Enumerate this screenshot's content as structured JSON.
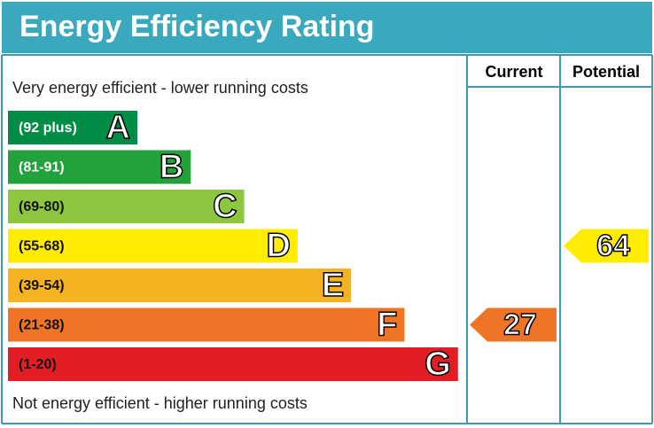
{
  "chart_data": {
    "type": "epc",
    "title": "Energy Efficiency Rating",
    "top_label": "Very energy efficient - lower running costs",
    "bottom_label": "Not energy efficient - higher running costs",
    "columns": [
      "Current",
      "Potential"
    ],
    "bands": [
      {
        "letter": "A",
        "range": "(92 plus)",
        "color": "#008c46",
        "text_color": "#ffffff"
      },
      {
        "letter": "B",
        "range": "(81-91)",
        "color": "#22a23a",
        "text_color": "#ffffff"
      },
      {
        "letter": "C",
        "range": "(69-80)",
        "color": "#8dc63f",
        "text_color": "#111111"
      },
      {
        "letter": "D",
        "range": "(55-68)",
        "color": "#ffec00",
        "text_color": "#111111"
      },
      {
        "letter": "E",
        "range": "(39-54)",
        "color": "#f5b322",
        "text_color": "#111111"
      },
      {
        "letter": "F",
        "range": "(21-38)",
        "color": "#ee7526",
        "text_color": "#111111"
      },
      {
        "letter": "G",
        "range": "(1-20)",
        "color": "#e31d24",
        "text_color": "#111111"
      }
    ],
    "ratings": [
      {
        "value": 27,
        "color": "#ee7526"
      },
      {
        "value": 64,
        "color": "#ffec00"
      }
    ]
  }
}
